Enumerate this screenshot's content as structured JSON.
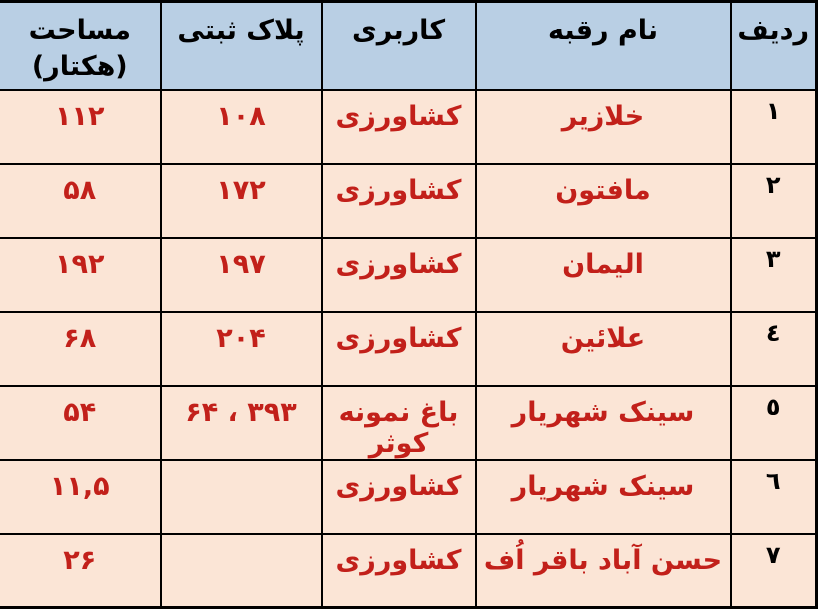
{
  "table": {
    "title_semantic": "land-parcels-table",
    "columns": [
      {
        "key": "radif",
        "label": "ردیف"
      },
      {
        "key": "name",
        "label": "نام رقبه"
      },
      {
        "key": "usage",
        "label": "کاربری"
      },
      {
        "key": "plate",
        "label": "پلاک ثبتی"
      },
      {
        "key": "area",
        "label": "مساحت",
        "label_line2": "(هکتار)"
      }
    ],
    "rows": [
      {
        "radif": "۱",
        "name": "خلازیر",
        "usage": "کشاورزی",
        "plate": "۱۰۸",
        "area": "۱۱۲"
      },
      {
        "radif": "۲",
        "name": "مافتون",
        "usage": "کشاورزی",
        "plate": "۱۷۲",
        "area": "۵۸"
      },
      {
        "radif": "۳",
        "name": "الیمان",
        "usage": "کشاورزی",
        "plate": "۱۹۷",
        "area": "۱۹۲"
      },
      {
        "radif": "٤",
        "name": "علائین",
        "usage": "کشاورزی",
        "plate": "۲۰۴",
        "area": "۶۸"
      },
      {
        "radif": "٥",
        "name": "سینک شهریار",
        "usage": "باغ نمونه کوثر",
        "plate": "۳۹۳ ، ۶۴",
        "area": "۵۴"
      },
      {
        "radif": "٦",
        "name": "سینک شهریار",
        "usage": "کشاورزی",
        "plate": "",
        "area": "۱۱,۵"
      },
      {
        "radif": "۷",
        "name": "حسن آباد باقر اُف",
        "usage": "کشاورزی",
        "plate": "",
        "area": "۲۶"
      }
    ],
    "colors": {
      "header_bg": "#b9cfe4",
      "row_bg": "#fbe5d6",
      "data_text": "#c2201a",
      "header_text": "#000000",
      "border": "#000000"
    }
  }
}
